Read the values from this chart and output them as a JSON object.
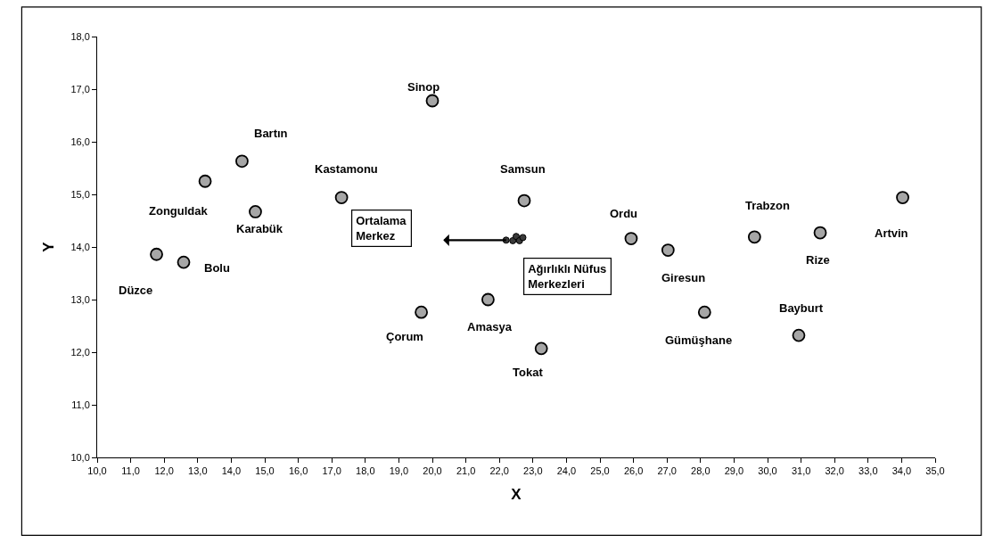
{
  "chart_data": {
    "type": "scatter",
    "xlabel": "X",
    "ylabel": "Y",
    "series": [
      {
        "color": "#a6a6a6",
        "marker": "circle",
        "x": [
          20.0,
          14.32,
          13.22,
          14.72,
          17.29,
          11.77,
          12.58,
          19.67,
          22.74,
          25.93,
          27.03,
          21.66,
          23.25,
          28.12,
          29.61,
          31.57,
          34.03,
          30.93
        ],
        "values": [
          16.78,
          15.63,
          15.25,
          14.67,
          14.94,
          13.86,
          13.71,
          12.76,
          14.88,
          14.16,
          13.94,
          13.0,
          12.07,
          12.76,
          14.19,
          14.27,
          14.94,
          12.32
        ]
      },
      {
        "color": "#3a3a3a",
        "marker": "circle",
        "x": [
          22.2,
          22.4,
          22.5,
          22.6,
          22.7
        ],
        "values": [
          14.13,
          14.12,
          14.2,
          14.12,
          14.18
        ]
      }
    ],
    "xlim": [
      10,
      35
    ],
    "ylim": [
      10,
      18
    ],
    "xticks": [
      {
        "value": 10,
        "label": "10,0"
      },
      {
        "value": 11,
        "label": "11,0"
      },
      {
        "value": 12,
        "label": "12,0"
      },
      {
        "value": 13,
        "label": "13,0"
      },
      {
        "value": 14,
        "label": "14,0"
      },
      {
        "value": 15,
        "label": "15,0"
      },
      {
        "value": 16,
        "label": "16,0"
      },
      {
        "value": 17,
        "label": "17,0"
      },
      {
        "value": 18,
        "label": "18,0"
      },
      {
        "value": 19,
        "label": "19,0"
      },
      {
        "value": 20,
        "label": "20,0"
      },
      {
        "value": 21,
        "label": "21,0"
      },
      {
        "value": 22,
        "label": "22,0"
      },
      {
        "value": 23,
        "label": "23,0"
      },
      {
        "value": 24,
        "label": "24,0"
      },
      {
        "value": 25,
        "label": "25,0"
      },
      {
        "value": 26,
        "label": "26,0"
      },
      {
        "value": 27,
        "label": "27,0"
      },
      {
        "value": 28,
        "label": "28,0"
      },
      {
        "value": 29,
        "label": "29,0"
      },
      {
        "value": 30,
        "label": "30,0"
      },
      {
        "value": 31,
        "label": "31,0"
      },
      {
        "value": 32,
        "label": "32,0"
      },
      {
        "value": 33,
        "label": "33,0"
      },
      {
        "value": 34,
        "label": "34,0"
      },
      {
        "value": 35,
        "label": "35,0"
      }
    ],
    "yticks": [
      {
        "value": 10,
        "label": "10,0"
      },
      {
        "value": 11,
        "label": "11,0"
      },
      {
        "value": 12,
        "label": "12,0"
      },
      {
        "value": 13,
        "label": "13,0"
      },
      {
        "value": 14,
        "label": "14,0"
      },
      {
        "value": 15,
        "label": "15,0"
      },
      {
        "value": 16,
        "label": "16,0"
      },
      {
        "value": 17,
        "label": "17,0"
      },
      {
        "value": 18,
        "label": "18,0"
      }
    ],
    "annotations": [
      {
        "text": "Sinop",
        "x": 20.0,
        "y": 16.78
      },
      {
        "text": "Bartın",
        "x": 14.32,
        "y": 15.63
      },
      {
        "text": "Kastamonu",
        "x": 17.29,
        "y": 14.94
      },
      {
        "text": "Zonguldak",
        "x": 13.22,
        "y": 15.25
      },
      {
        "text": "Karabük",
        "x": 14.72,
        "y": 14.67
      },
      {
        "text": "Düzce",
        "x": 11.77,
        "y": 13.86
      },
      {
        "text": "Bolu",
        "x": 12.58,
        "y": 13.71
      },
      {
        "text": "Çorum",
        "x": 19.67,
        "y": 12.76
      },
      {
        "text": "Samsun",
        "x": 22.74,
        "y": 14.88
      },
      {
        "text": "Ordu",
        "x": 25.93,
        "y": 14.16
      },
      {
        "text": "Giresun",
        "x": 27.03,
        "y": 13.94
      },
      {
        "text": "Amasya",
        "x": 21.66,
        "y": 13.0
      },
      {
        "text": "Tokat",
        "x": 23.25,
        "y": 12.07
      },
      {
        "text": "Gümüşhane",
        "x": 28.12,
        "y": 12.76
      },
      {
        "text": "Trabzon",
        "x": 29.61,
        "y": 14.19
      },
      {
        "text": "Rize",
        "x": 31.57,
        "y": 14.27
      },
      {
        "text": "Artvin",
        "x": 34.03,
        "y": 14.94
      },
      {
        "text": "Bayburt",
        "x": 30.93,
        "y": 12.32
      },
      "Ortalama\nMerkez",
      "Ağırlıklı Nüfus\nMerkezleri"
    ]
  }
}
